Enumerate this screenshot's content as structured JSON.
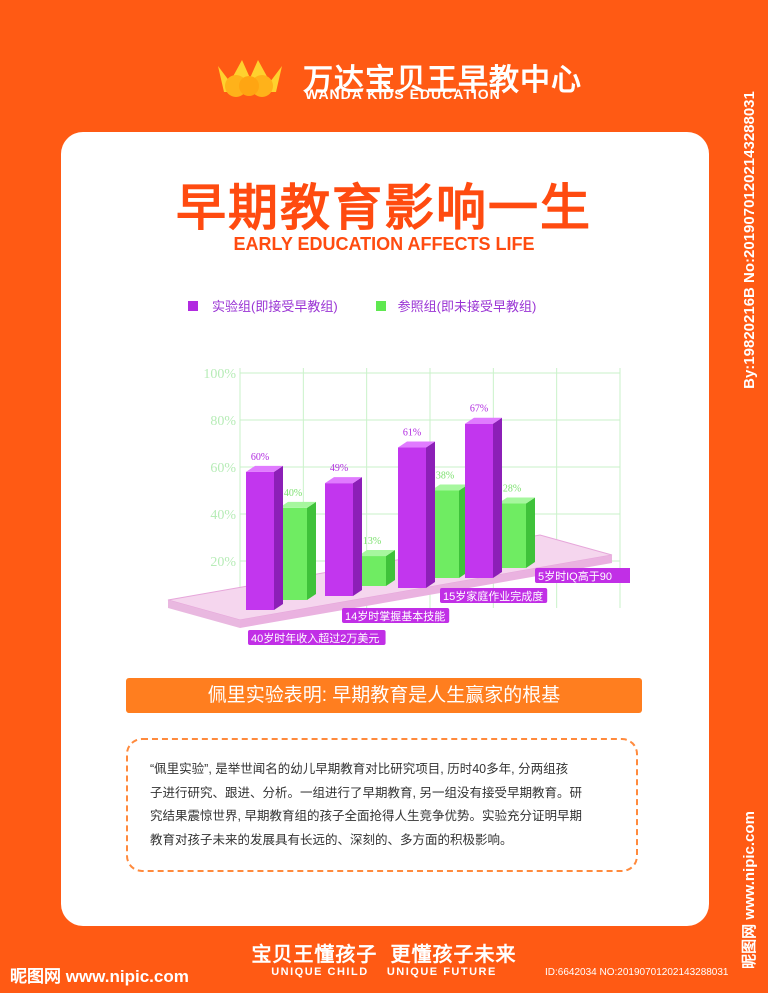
{
  "brand": {
    "name_cn": "万达宝贝王早教中心",
    "name_en": "WANDA KIDS EDUCATION"
  },
  "title_cn": "早期教育影响一生",
  "title_en": "EARLY EDUCATION AFFECTS LIFE",
  "legend": [
    {
      "label": "实验组(即接受早教组)",
      "color": "#b12be0"
    },
    {
      "label": "参照组(即未接受早教组)",
      "color": "#5fe850"
    }
  ],
  "chart_data": {
    "type": "bar",
    "categories": [
      "40岁时年收入超过2万美元",
      "14岁时掌握基本技能",
      "15岁家庭作业完成度",
      "5岁时IQ高于90"
    ],
    "series": [
      {
        "name": "实验组(即接受早教组)",
        "values": [
          60,
          49,
          61,
          67
        ],
        "labels": [
          "60%",
          "49%",
          "61%",
          "67%"
        ],
        "color": "#b12be0"
      },
      {
        "name": "参照组(即未接受早教组)",
        "values": [
          40,
          13,
          38,
          28
        ],
        "labels": [
          "40%",
          "13%",
          "38%",
          "28%"
        ],
        "color": "#5fe850"
      }
    ],
    "y_ticks": [
      "20%",
      "40%",
      "60%",
      "80%",
      "100%"
    ],
    "ylim": [
      0,
      100
    ],
    "grid": true,
    "style": "3d-perspective"
  },
  "banner_text": "佩里实验表明: 早期教育是人生赢家的根基",
  "description": [
    "“佩里实验”, 是举世闻名的幼儿早期教育对比研究项目, 历时40多年, 分两组孩",
    "子进行研究、跟进、分析。一组进行了早期教育, 另一组没有接受早期教育。研",
    "究结果震惊世界, 早期教育组的孩子全面抢得人生竞争优势。实验充分证明早期",
    "教育对孩子未来的发展具有长远的、深刻的、多方面的积极影响。"
  ],
  "slogan_cn": "宝贝王懂孩子  更懂孩子未来",
  "slogan_en": "UNIQUE CHILD    UNIQUE FUTURE",
  "watermark": {
    "left": "昵图网 www.nipic.com",
    "id": "ID:6642034 NO:20190701202143288031",
    "right_top": "By:19820216B No:20190701202143288031",
    "right_bottom": "昵图网 www.nipic.com"
  }
}
